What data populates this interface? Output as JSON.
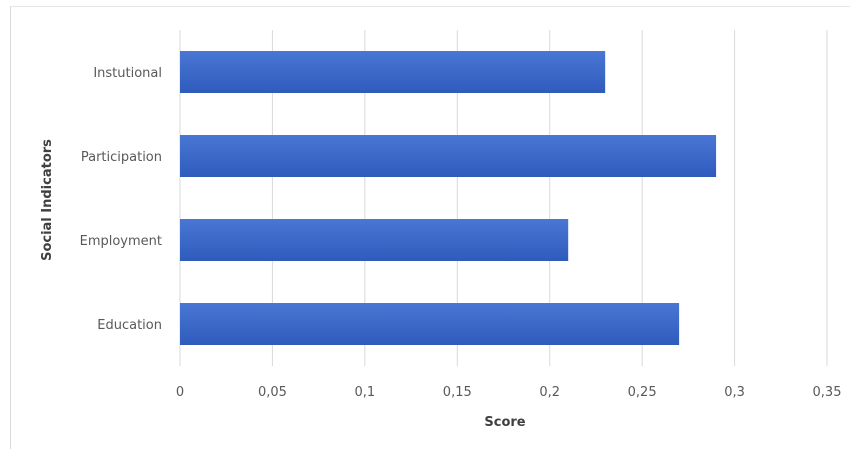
{
  "chart_data": {
    "type": "bar",
    "orientation": "horizontal",
    "categories": [
      "Instutional",
      "Participation",
      "Employment",
      "Education"
    ],
    "values": [
      0.23,
      0.29,
      0.21,
      0.27
    ],
    "xlabel": "Score",
    "ylabel": "Social Indicators",
    "xlim": [
      0,
      0.35
    ],
    "xticks": [
      0,
      0.05,
      0.1,
      0.15,
      0.2,
      0.25,
      0.3,
      0.35
    ],
    "xtick_labels": [
      "0",
      "0,05",
      "0,1",
      "0,15",
      "0,2",
      "0,25",
      "0,3",
      "0,35"
    ],
    "grid": "vertical",
    "legend": "none",
    "colors": {
      "bar_top": "#4a76d4",
      "bar_bottom": "#2f5bbd",
      "grid": "#d9d9d9",
      "tick_text": "#595959",
      "axis_title": "#404040"
    }
  }
}
